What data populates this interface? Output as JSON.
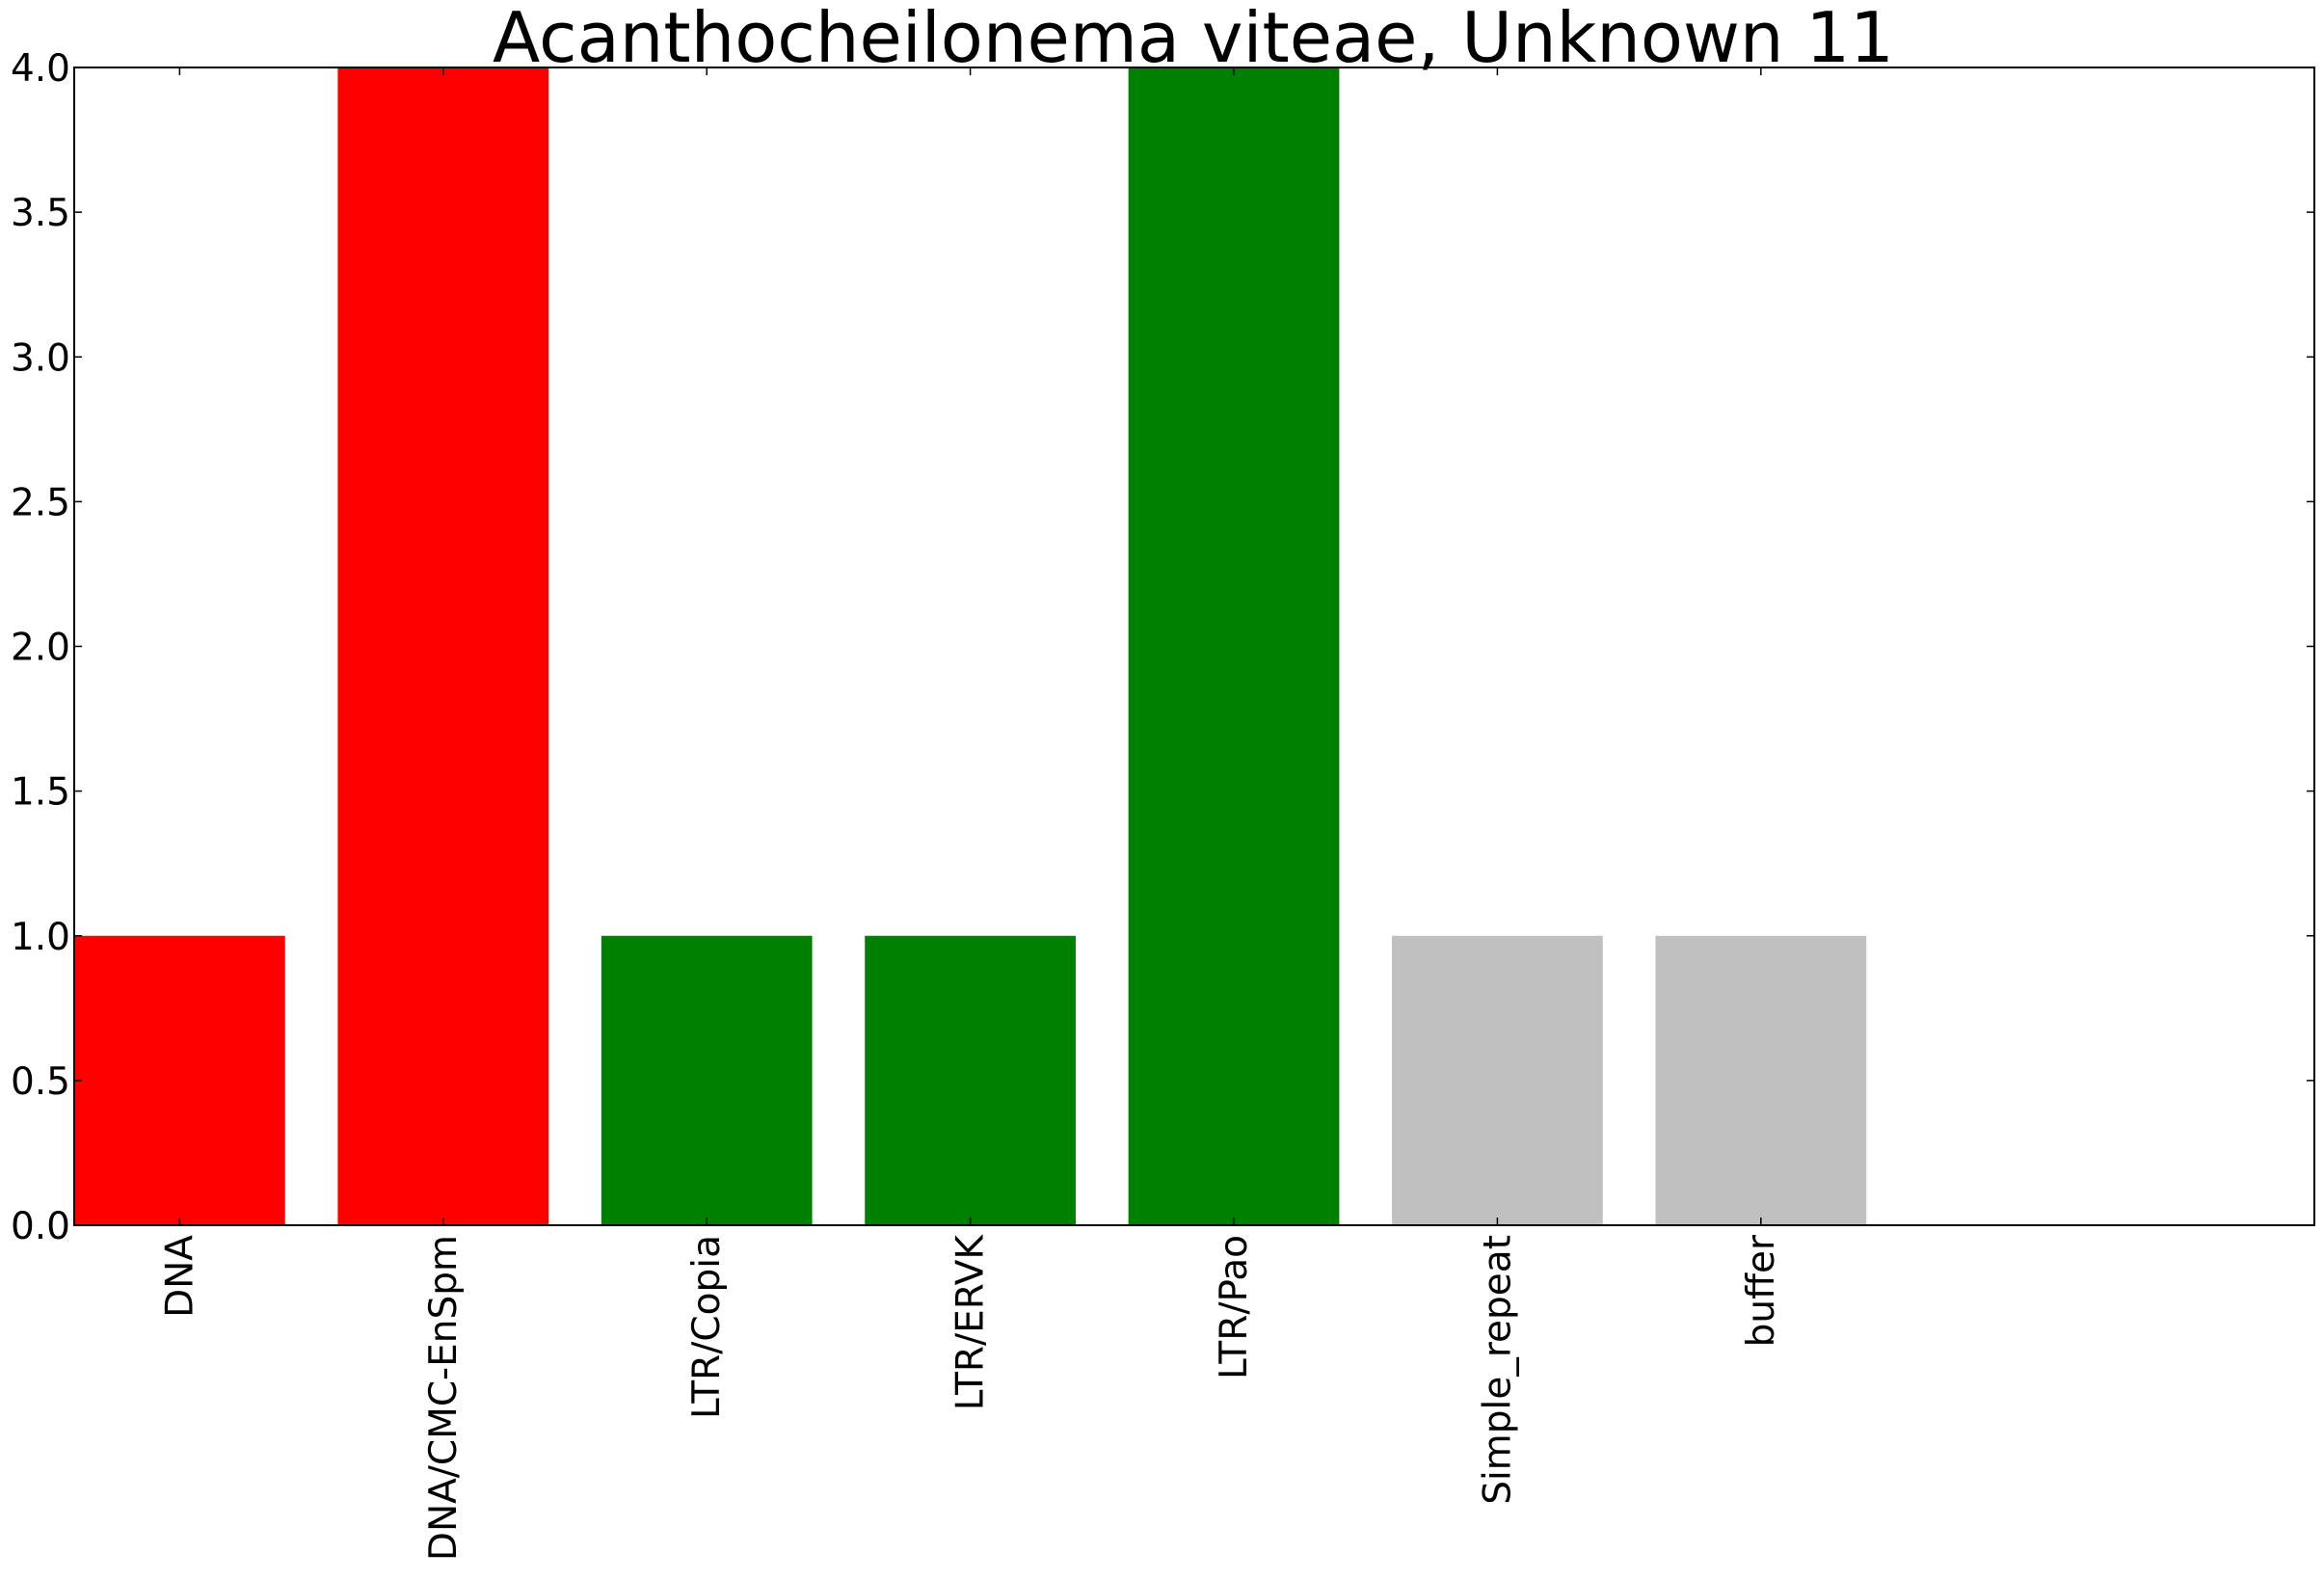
{
  "chart_data": {
    "type": "bar",
    "title": "Acanthocheilonema viteae, Unknown 11",
    "xlabel": "",
    "ylabel": "",
    "categories": [
      "DNA",
      "DNA/CMC-EnSpm",
      "LTR/Copia",
      "LTR/ERVK",
      "LTR/Pao",
      "Simple_repeat",
      "buffer"
    ],
    "values": [
      1,
      4,
      1,
      1,
      4,
      1,
      1
    ],
    "bar_colors": [
      "#ff0000",
      "#ff0000",
      "#008000",
      "#008000",
      "#008000",
      "#c0c0c0",
      "#c0c0c0"
    ],
    "ylim": [
      0,
      4.0
    ],
    "xlim": [
      0,
      8.5
    ],
    "yticks": [
      "0.0",
      "0.5",
      "1.0",
      "1.5",
      "2.0",
      "2.5",
      "3.0",
      "3.5",
      "4.0"
    ],
    "grid": false,
    "legend": "none"
  }
}
